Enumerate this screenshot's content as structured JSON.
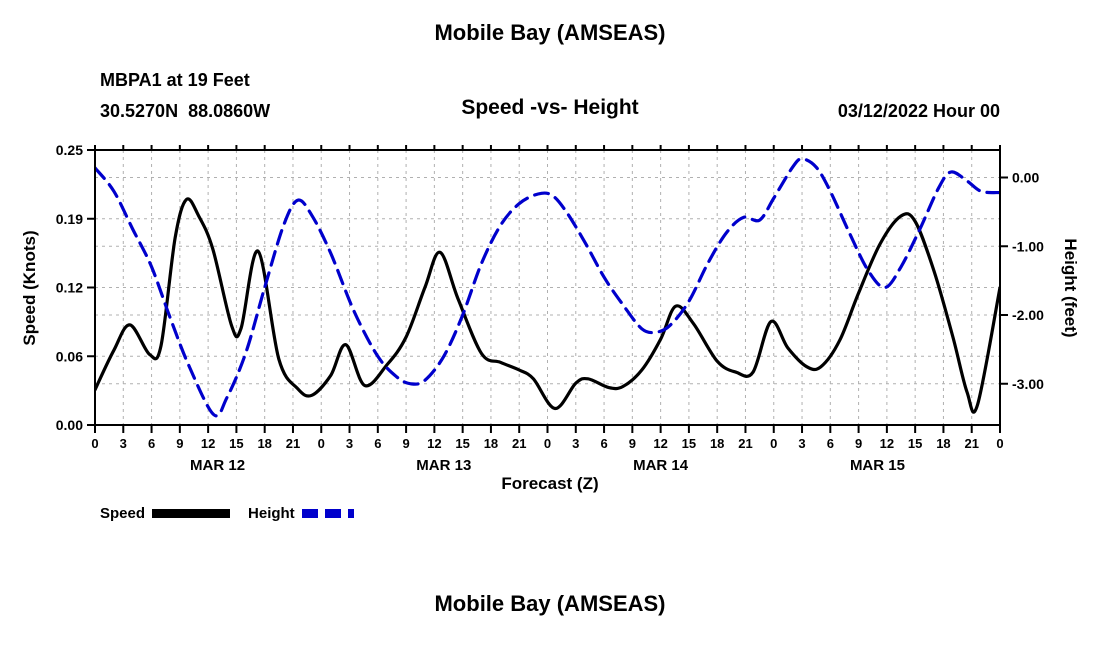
{
  "header": {
    "title_top": "Mobile Bay (AMSEAS)",
    "station": "MBPA1 at 19 Feet",
    "coords": "30.5270N  88.0860W",
    "subtitle": "Speed -vs- Height",
    "datetime": "03/12/2022 Hour 00"
  },
  "footer": {
    "title_bottom": "Mobile Bay (AMSEAS)"
  },
  "legend": [
    {
      "label": "Speed",
      "color": "#000000",
      "style": "solid"
    },
    {
      "label": "Height",
      "color": "#0000cc",
      "style": "dashed"
    }
  ],
  "colors": {
    "speed": "#000000",
    "height": "#0000cc",
    "grid": "#b0b0b0",
    "text": "#000000",
    "background": "#ffffff"
  },
  "chart_data": {
    "type": "line",
    "title": "Speed -vs- Height",
    "xlabel": "Forecast (Z)",
    "grid": true,
    "legend_position": "bottom-left",
    "xlim": [
      0,
      96
    ],
    "x_tick_hours": [
      0,
      3,
      6,
      9,
      12,
      15,
      18,
      21,
      24,
      27,
      30,
      33,
      36,
      39,
      42,
      45,
      48,
      51,
      54,
      57,
      60,
      63,
      66,
      69,
      72,
      75,
      78,
      81,
      84,
      87,
      90,
      93,
      96
    ],
    "x_tick_labels": [
      "0",
      "3",
      "6",
      "9",
      "12",
      "15",
      "18",
      "21",
      "0",
      "3",
      "6",
      "9",
      "12",
      "15",
      "18",
      "21",
      "0",
      "3",
      "6",
      "9",
      "12",
      "15",
      "18",
      "21",
      "0",
      "3",
      "6",
      "9",
      "12",
      "15",
      "18",
      "21",
      "0"
    ],
    "day_labels": [
      {
        "label": "MAR 12",
        "hour": 13
      },
      {
        "label": "MAR 13",
        "hour": 37
      },
      {
        "label": "MAR 14",
        "hour": 60
      },
      {
        "label": "MAR 15",
        "hour": 83
      }
    ],
    "speed_axis": {
      "label": "Speed (Knots)",
      "min": 0,
      "max": 0.25,
      "tick_values": [
        0,
        0.0625,
        0.125,
        0.1875,
        0.25
      ],
      "tick_labels": [
        "0.00",
        "0.06",
        "0.12",
        "0.19",
        "0.25"
      ]
    },
    "height_axis": {
      "label": "Height (feet)",
      "top": 0.4,
      "bottom": -3.6,
      "tick_values": [
        0,
        -1,
        -2,
        -3
      ],
      "tick_labels": [
        "0.00",
        "-1.00",
        "-2.00",
        "-3.00"
      ]
    },
    "series": [
      {
        "name": "Speed",
        "axis": "speed",
        "color": "#000000",
        "style": "solid",
        "units": "knots",
        "points": [
          [
            0,
            0.032
          ],
          [
            2,
            0.068
          ],
          [
            3.7,
            0.091
          ],
          [
            5.8,
            0.064
          ],
          [
            7,
            0.072
          ],
          [
            8.5,
            0.17
          ],
          [
            9.7,
            0.205
          ],
          [
            11,
            0.19
          ],
          [
            12.5,
            0.16
          ],
          [
            14.5,
            0.09
          ],
          [
            15.5,
            0.088
          ],
          [
            17.3,
            0.158
          ],
          [
            19.5,
            0.06
          ],
          [
            21.5,
            0.033
          ],
          [
            23,
            0.027
          ],
          [
            25,
            0.045
          ],
          [
            26.6,
            0.073
          ],
          [
            28.6,
            0.036
          ],
          [
            31,
            0.055
          ],
          [
            33,
            0.08
          ],
          [
            35,
            0.125
          ],
          [
            36.6,
            0.157
          ],
          [
            38.5,
            0.115
          ],
          [
            41,
            0.065
          ],
          [
            43,
            0.057
          ],
          [
            45,
            0.05
          ],
          [
            46.5,
            0.042
          ],
          [
            48.8,
            0.015
          ],
          [
            51,
            0.038
          ],
          [
            52.3,
            0.042
          ],
          [
            54.5,
            0.034
          ],
          [
            56,
            0.035
          ],
          [
            58,
            0.05
          ],
          [
            60,
            0.078
          ],
          [
            61.6,
            0.108
          ],
          [
            63.5,
            0.092
          ],
          [
            66,
            0.058
          ],
          [
            68,
            0.048
          ],
          [
            69.8,
            0.048
          ],
          [
            71.7,
            0.094
          ],
          [
            73.5,
            0.07
          ],
          [
            75.5,
            0.053
          ],
          [
            77,
            0.053
          ],
          [
            79,
            0.077
          ],
          [
            81,
            0.12
          ],
          [
            83.3,
            0.165
          ],
          [
            85.5,
            0.19
          ],
          [
            87,
            0.185
          ],
          [
            89,
            0.14
          ],
          [
            91,
            0.08
          ],
          [
            92.5,
            0.03
          ],
          [
            93.6,
            0.018
          ],
          [
            96,
            0.125
          ]
        ]
      },
      {
        "name": "Height",
        "axis": "height",
        "color": "#0000cc",
        "style": "dashed",
        "units": "feet",
        "points": [
          [
            0,
            0.14
          ],
          [
            2,
            -0.2
          ],
          [
            4,
            -0.75
          ],
          [
            6,
            -1.3
          ],
          [
            8,
            -2.05
          ],
          [
            10,
            -2.75
          ],
          [
            12.6,
            -3.45
          ],
          [
            14,
            -3.2
          ],
          [
            16,
            -2.55
          ],
          [
            18,
            -1.6
          ],
          [
            20,
            -0.7
          ],
          [
            21.5,
            -0.33
          ],
          [
            23,
            -0.55
          ],
          [
            25,
            -1.1
          ],
          [
            27.5,
            -1.95
          ],
          [
            30,
            -2.6
          ],
          [
            32,
            -2.9
          ],
          [
            33.5,
            -3.0
          ],
          [
            35,
            -2.95
          ],
          [
            37,
            -2.6
          ],
          [
            39,
            -2.0
          ],
          [
            41,
            -1.25
          ],
          [
            43,
            -0.7
          ],
          [
            45,
            -0.38
          ],
          [
            47,
            -0.24
          ],
          [
            48.5,
            -0.26
          ],
          [
            50,
            -0.5
          ],
          [
            52,
            -0.95
          ],
          [
            54,
            -1.45
          ],
          [
            56,
            -1.85
          ],
          [
            58,
            -2.2
          ],
          [
            59.5,
            -2.25
          ],
          [
            61,
            -2.15
          ],
          [
            63,
            -1.8
          ],
          [
            65,
            -1.25
          ],
          [
            67,
            -0.8
          ],
          [
            68.8,
            -0.58
          ],
          [
            70.5,
            -0.62
          ],
          [
            72,
            -0.3
          ],
          [
            74,
            0.15
          ],
          [
            75,
            0.27
          ],
          [
            76.5,
            0.15
          ],
          [
            78,
            -0.2
          ],
          [
            80,
            -0.8
          ],
          [
            82,
            -1.35
          ],
          [
            83.8,
            -1.6
          ],
          [
            85.5,
            -1.3
          ],
          [
            87.5,
            -0.75
          ],
          [
            89.5,
            -0.15
          ],
          [
            90.8,
            0.08
          ],
          [
            92.5,
            -0.05
          ],
          [
            94,
            -0.2
          ],
          [
            96,
            -0.22
          ]
        ]
      }
    ]
  }
}
